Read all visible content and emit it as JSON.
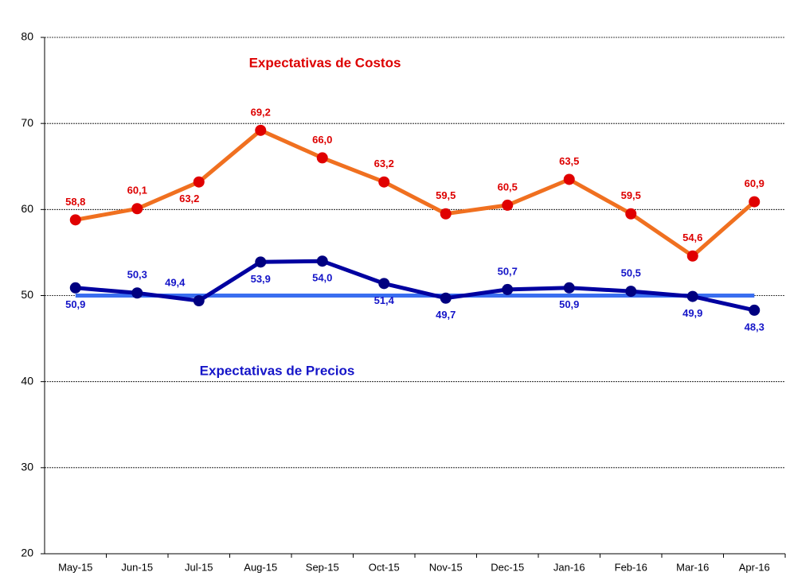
{
  "chart_data": {
    "type": "line",
    "categories": [
      "May-15",
      "Jun-15",
      "Jul-15",
      "Aug-15",
      "Sep-15",
      "Oct-15",
      "Nov-15",
      "Dec-15",
      "Jan-16",
      "Feb-16",
      "Mar-16",
      "Apr-16"
    ],
    "ylim": [
      20,
      80
    ],
    "yticks": [
      20,
      30,
      40,
      50,
      60,
      70,
      80
    ],
    "grid": true,
    "series": [
      {
        "name": "Expectativas de Costos",
        "color": "#f07020",
        "marker_color": "#e00000",
        "label_color": "#dd0000",
        "values": [
          58.8,
          60.1,
          63.2,
          69.2,
          66.0,
          63.2,
          59.5,
          60.5,
          63.5,
          59.5,
          54.6,
          60.9
        ],
        "value_labels": [
          "58,8",
          "60,1",
          "63,2",
          "69,2",
          "66,0",
          "63,2",
          "59,5",
          "60,5",
          "63,5",
          "59,5",
          "54,6",
          "60,9"
        ]
      },
      {
        "name": "Expectativas de Precios",
        "color": "#0000a0",
        "marker_color": "#000080",
        "label_color": "#1515c8",
        "values": [
          50.9,
          50.3,
          49.4,
          53.9,
          54.0,
          51.4,
          49.7,
          50.7,
          50.9,
          50.5,
          49.9,
          48.3
        ],
        "value_labels": [
          "50,9",
          "50,3",
          "49,4",
          "53,9",
          "54,0",
          "51,4",
          "49,7",
          "50,7",
          "50,9",
          "50,5",
          "49,9",
          "48,3"
        ]
      },
      {
        "color": "#3a6ef0",
        "values": [
          50,
          50,
          50,
          50,
          50,
          50,
          50,
          50,
          50,
          50,
          50,
          50
        ]
      }
    ]
  }
}
